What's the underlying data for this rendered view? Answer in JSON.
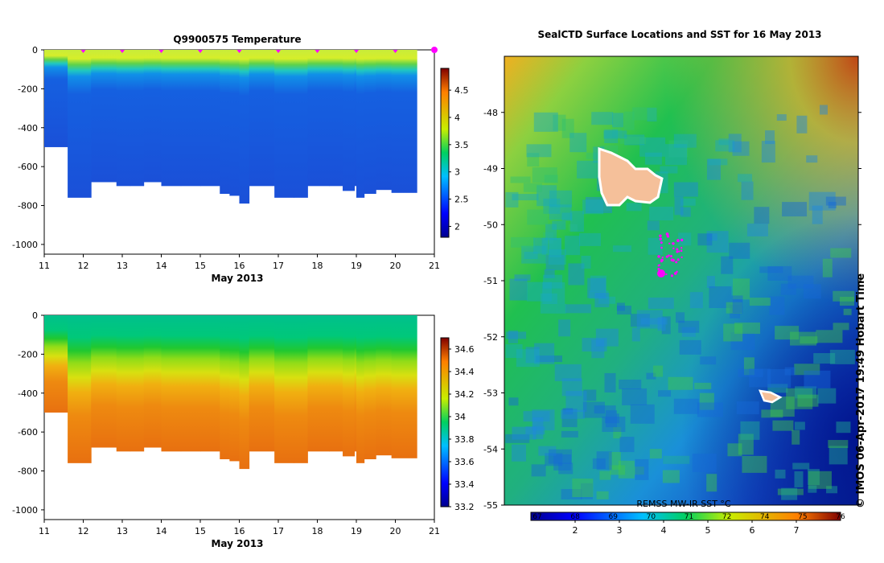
{
  "chart_data": [
    {
      "type": "heatmap",
      "title": "Q9900575  Temperature",
      "xlabel": "May 2013",
      "x_ticks": [
        11,
        12,
        13,
        14,
        15,
        16,
        17,
        18,
        19,
        20,
        21
      ],
      "xlim": [
        11,
        21
      ],
      "y_ticks": [
        0,
        -200,
        -400,
        -600,
        -800,
        -1000
      ],
      "ylim": [
        -1050,
        0
      ],
      "colorbar": {
        "ticks": [
          2,
          2.5,
          3,
          3.5,
          4,
          4.5
        ],
        "range": [
          1.8,
          4.9
        ]
      },
      "profile_marker_color": "#ff00ff",
      "profile_markers": [
        12,
        13,
        14,
        15,
        16,
        17,
        18,
        19,
        20,
        21
      ],
      "profiles": [
        {
          "t": 11.0,
          "max_depth": 500
        },
        {
          "t": 11.6,
          "max_depth": 760
        },
        {
          "t": 12.2,
          "max_depth": 680
        },
        {
          "t": 12.85,
          "max_depth": 700
        },
        {
          "t": 13.2,
          "max_depth": 700
        },
        {
          "t": 13.55,
          "max_depth": 680
        },
        {
          "t": 14.0,
          "max_depth": 700
        },
        {
          "t": 14.5,
          "max_depth": 700
        },
        {
          "t": 15.0,
          "max_depth": 700
        },
        {
          "t": 15.5,
          "max_depth": 740
        },
        {
          "t": 15.75,
          "max_depth": 750
        },
        {
          "t": 16.0,
          "max_depth": 790
        },
        {
          "t": 16.25,
          "max_depth": 700
        },
        {
          "t": 16.9,
          "max_depth": 760
        },
        {
          "t": 17.4,
          "max_depth": 760
        },
        {
          "t": 17.75,
          "max_depth": 700
        },
        {
          "t": 18.3,
          "max_depth": 700
        },
        {
          "t": 18.65,
          "max_depth": 725
        },
        {
          "t": 18.95,
          "max_depth": 700
        },
        {
          "t": 19.0,
          "max_depth": 760
        },
        {
          "t": 19.2,
          "max_depth": 740
        },
        {
          "t": 19.5,
          "max_depth": 720
        },
        {
          "t": 19.9,
          "max_depth": 735
        }
      ],
      "data_end": 20.55
    },
    {
      "type": "heatmap",
      "xlabel": "May 2013",
      "x_ticks": [
        11,
        12,
        13,
        14,
        15,
        16,
        17,
        18,
        19,
        20,
        21
      ],
      "xlim": [
        11,
        21
      ],
      "y_ticks": [
        0,
        -200,
        -400,
        -600,
        -800,
        -1000
      ],
      "ylim": [
        -1050,
        0
      ],
      "colorbar": {
        "ticks": [
          33.2,
          33.4,
          33.6,
          33.8,
          34,
          34.2,
          34.4,
          34.6
        ],
        "range": [
          33.2,
          34.7
        ]
      }
    },
    {
      "type": "heatmap",
      "title": "SealCTD Surface Locations and SST for 16 May 2013",
      "y_ticks": [
        -48,
        -49,
        -50,
        -51,
        -52,
        -53,
        -54,
        -55
      ],
      "ylim": [
        -55,
        -47.0
      ],
      "colorbar": {
        "label": "REMSS MW-IR SST °C",
        "ticks": [
          2,
          3,
          4,
          5,
          6,
          7
        ],
        "top_ticks": [
          "67",
          "68",
          "69",
          "70",
          "71",
          "72",
          "74",
          "75",
          "76"
        ],
        "range": [
          1.0,
          8.0
        ]
      },
      "track_color": "#ff00ff",
      "islands": [
        {
          "lon": -0.5,
          "lat": -49.25
        },
        {
          "lon": 0.75,
          "lat": -53.08
        }
      ]
    }
  ],
  "credit": "© IMOS 06-Apr-2017 19:49 Hobart Time"
}
